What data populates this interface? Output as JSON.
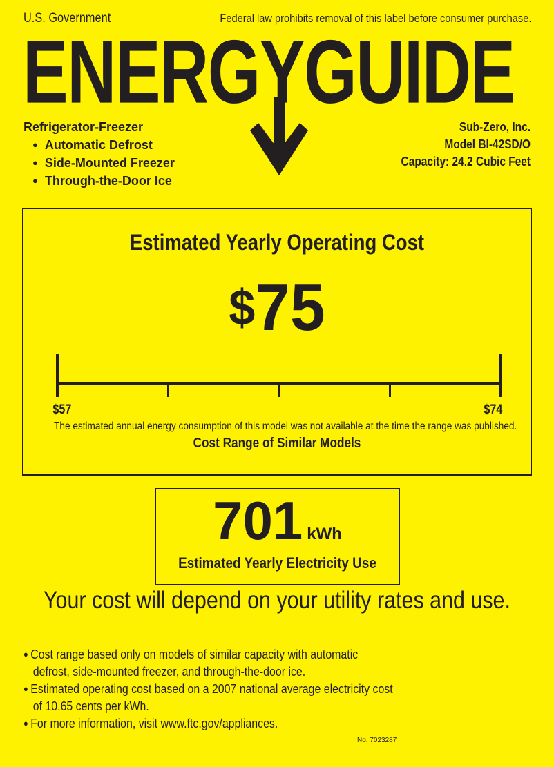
{
  "header": {
    "issuer": "U.S. Government",
    "legal_notice": "Federal law prohibits removal of this label before consumer purchase.",
    "logo_text": "ENERGYGUIDE"
  },
  "product": {
    "type": "Refrigerator-Freezer",
    "features": [
      "Automatic Defrost",
      "Side-Mounted Freezer",
      "Through-the-Door Ice"
    ],
    "manufacturer": "Sub-Zero, Inc.",
    "model": "Model BI-42SD/O",
    "capacity": "Capacity: 24.2 Cubic Feet"
  },
  "cost": {
    "title": "Estimated Yearly Operating Cost",
    "currency_symbol": "$",
    "value": "75",
    "range_min": "$57",
    "range_max": "$74",
    "note": "The estimated annual energy consumption of this model was not available at the time the range was published.",
    "range_title": "Cost Range of Similar Models"
  },
  "electricity": {
    "value": "701",
    "unit": "kWh",
    "label": "Estimated Yearly Electricity Use"
  },
  "disclaimer": "Your cost will depend on your utility rates and use.",
  "footnotes": [
    "Cost range based only on models of similar capacity with automatic defrost, side-mounted freezer, and through-the-door ice.",
    "Estimated operating cost based on a 2007 national average electricity cost of 10.65 cents per kWh.",
    "For more information, visit www.ftc.gov/appliances."
  ],
  "label_number": "No. 7023287",
  "colors": {
    "background": "#fff200",
    "ink": "#231f20"
  }
}
